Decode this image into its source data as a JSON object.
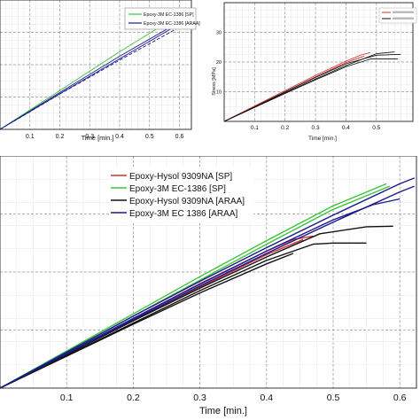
{
  "chart_data": [
    {
      "type": "line",
      "xlabel": "Time [min.]",
      "xlim": [
        0.0,
        0.64
      ],
      "ylim": [
        0,
        40
      ],
      "x_ticks": [
        "0.1",
        "0.2",
        "0.3",
        "0.4",
        "0.5",
        "0.6"
      ],
      "x_tick_values": [
        0.1,
        0.2,
        0.3,
        0.4,
        0.5,
        0.6
      ],
      "grid": true,
      "legend_position": "top-right",
      "series": [
        {
          "name": "Epoxy-3M EC-1386 [SP]",
          "color": "#3cc33c",
          "x": [
            0.0,
            0.2,
            0.4,
            0.6
          ],
          "y": [
            0,
            12.0,
            24.0,
            35.4
          ]
        },
        {
          "name": "Epoxy-3M EC-1386 [ARAA]",
          "color": "#1a1a8c",
          "x": [
            0.0,
            0.2,
            0.4,
            0.6
          ],
          "y": [
            0,
            11.4,
            22.6,
            33.2
          ]
        },
        {
          "color": "#1a1a8c",
          "x": [
            0.0,
            0.2,
            0.4,
            0.6
          ],
          "y": [
            0,
            11.0,
            21.8,
            32.6
          ]
        },
        {
          "color": "#1a1a8c",
          "dash": true,
          "x": [
            0.0,
            0.2,
            0.4,
            0.6
          ],
          "y": [
            0,
            10.9,
            21.4,
            31.6
          ]
        }
      ]
    },
    {
      "type": "line",
      "xlabel": "Time [min.]",
      "ylabel": "Stress [MPa]",
      "xlim": [
        0.0,
        0.62
      ],
      "ylim": [
        0,
        40
      ],
      "x_ticks": [
        "0.1",
        "0.2",
        "0.3",
        "0.4",
        "0.5"
      ],
      "x_tick_values": [
        0.1,
        0.2,
        0.3,
        0.4,
        0.5
      ],
      "y_ticks": [
        "10",
        "20",
        "30"
      ],
      "y_tick_values": [
        10,
        20,
        30
      ],
      "grid": true,
      "legend_position": "top-right",
      "series": [
        {
          "color": "#d03030",
          "x": [
            0.0,
            0.1,
            0.2,
            0.3,
            0.4,
            0.45,
            0.48
          ],
          "y": [
            0,
            5.2,
            10.4,
            15.5,
            20.3,
            22.4,
            23.2
          ]
        },
        {
          "color": "#d03030",
          "x": [
            0.0,
            0.1,
            0.2,
            0.3,
            0.4,
            0.46
          ],
          "y": [
            0,
            5.0,
            10.0,
            15.0,
            19.8,
            22.0
          ]
        },
        {
          "color": "#111111",
          "x": [
            0.0,
            0.1,
            0.2,
            0.3,
            0.4,
            0.5,
            0.58
          ],
          "y": [
            0,
            4.9,
            9.9,
            14.8,
            19.4,
            22.3,
            22.6
          ]
        },
        {
          "color": "#111111",
          "x": [
            0.0,
            0.1,
            0.2,
            0.3,
            0.4,
            0.5,
            0.56
          ],
          "y": [
            0,
            4.8,
            9.6,
            14.3,
            18.8,
            22.8,
            23.4
          ]
        },
        {
          "color": "#111111",
          "x": [
            0.0,
            0.1,
            0.2,
            0.3,
            0.4,
            0.48,
            0.57
          ],
          "y": [
            0,
            4.7,
            9.4,
            14.0,
            18.4,
            21.0,
            21.0
          ]
        }
      ]
    },
    {
      "type": "line",
      "xlabel": "Time [min.]",
      "xlim": [
        0.0,
        0.625
      ],
      "ylim": [
        0,
        40
      ],
      "x_ticks": [
        "0.1",
        "0.2",
        "0.3",
        "0.4",
        "0.5",
        "0.6"
      ],
      "x_tick_values": [
        0.1,
        0.2,
        0.3,
        0.4,
        0.5,
        0.6
      ],
      "grid": true,
      "legend_position": "top-left",
      "legend": [
        {
          "label": "Epoxy-Hysol 9309NA [SP]",
          "color": "#d03030"
        },
        {
          "label": "Epoxy-3M EC-1386 [SP]",
          "color": "#3cc33c"
        },
        {
          "label": "Epoxy-Hysol 9309NA [ARAA]",
          "color": "#111111"
        },
        {
          "label": "Epoxy-3M EC 1386 [ARAA]",
          "color": "#1a1a8c"
        }
      ],
      "series": [
        {
          "name": "Epoxy-Hysol 9309NA [SP]",
          "color": "#d03030",
          "x": [
            0.0,
            0.1,
            0.2,
            0.3,
            0.4,
            0.44,
            0.47
          ],
          "y": [
            0,
            6.0,
            12.0,
            18.0,
            23.6,
            25.6,
            26.2
          ]
        },
        {
          "name": "Epoxy-Hysol 9309NA [SP]",
          "color": "#d03030",
          "x": [
            0.0,
            0.1,
            0.2,
            0.3,
            0.4,
            0.455
          ],
          "y": [
            0,
            5.8,
            11.6,
            17.4,
            23.0,
            25.6
          ]
        },
        {
          "name": "Epoxy-3M EC-1386 [SP]",
          "color": "#3cc33c",
          "x": [
            0.0,
            0.1,
            0.2,
            0.3,
            0.4,
            0.5,
            0.58
          ],
          "y": [
            0,
            6.4,
            12.8,
            19.2,
            25.4,
            31.4,
            35.2
          ]
        },
        {
          "name": "Epoxy-3M EC-1386 [SP]",
          "color": "#3cc33c",
          "x": [
            0.0,
            0.1,
            0.2,
            0.3,
            0.4,
            0.5,
            0.585
          ],
          "y": [
            0,
            6.2,
            12.4,
            18.6,
            24.8,
            30.8,
            34.8
          ]
        },
        {
          "name": "Epoxy-Hysol 9309NA [ARAA]",
          "color": "#111111",
          "x": [
            0.0,
            0.1,
            0.2,
            0.3,
            0.4,
            0.48,
            0.55,
            0.59
          ],
          "y": [
            0,
            5.8,
            11.6,
            17.2,
            22.6,
            26.6,
            27.8,
            27.9
          ]
        },
        {
          "name": "Epoxy-Hysol 9309NA [ARAA]",
          "color": "#111111",
          "x": [
            0.0,
            0.1,
            0.2,
            0.3,
            0.4,
            0.47,
            0.5,
            0.55
          ],
          "y": [
            0,
            5.6,
            11.2,
            16.8,
            22.0,
            24.8,
            25.0,
            25.0
          ]
        },
        {
          "name": "Epoxy-Hysol 9309NA [ARAA]",
          "color": "#111111",
          "x": [
            0.0,
            0.1,
            0.2,
            0.3,
            0.4,
            0.44
          ],
          "y": [
            0,
            5.5,
            11.0,
            16.4,
            21.4,
            23.2
          ]
        },
        {
          "name": "Epoxy-3M EC 1386 [ARAA]",
          "color": "#1a1a8c",
          "x": [
            0.0,
            0.1,
            0.2,
            0.3,
            0.4,
            0.5,
            0.6,
            0.622
          ],
          "y": [
            0,
            6.2,
            12.4,
            18.4,
            24.2,
            29.8,
            35.2,
            36.2
          ]
        },
        {
          "name": "Epoxy-3M EC 1386 [ARAA]",
          "color": "#1a1a8c",
          "x": [
            0.0,
            0.1,
            0.2,
            0.3,
            0.4,
            0.5,
            0.56,
            0.6
          ],
          "y": [
            0,
            6.0,
            12.0,
            17.9,
            23.6,
            29.0,
            31.6,
            32.6
          ]
        },
        {
          "name": "Epoxy-3M EC 1386 [ARAA]",
          "color": "#1a1a8c",
          "x": [
            0.0,
            0.1,
            0.2,
            0.3,
            0.4,
            0.5,
            0.6,
            0.622
          ],
          "y": [
            0,
            5.9,
            11.8,
            17.6,
            23.2,
            28.6,
            33.8,
            34.8
          ]
        }
      ]
    }
  ]
}
